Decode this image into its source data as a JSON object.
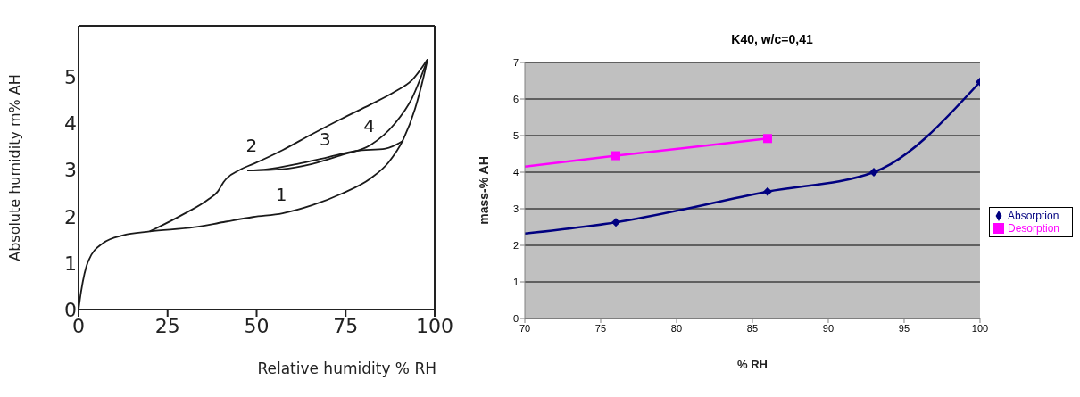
{
  "chart_data": [
    {
      "type": "line",
      "xlabel": "Relative humidity % RH",
      "ylabel": "Absolute humidity m% AH",
      "xlim": [
        0,
        100
      ],
      "ylim": [
        0,
        6.1
      ],
      "xticks": [
        0,
        25,
        50,
        75,
        100
      ],
      "yticks": [
        0,
        1,
        2,
        3,
        4,
        5
      ],
      "grid": false,
      "marker": "none",
      "series": [
        {
          "name": "1",
          "color": "#1a1a1a",
          "x": [
            0,
            0.7,
            2.7,
            6.9,
            12.6,
            20,
            32.5,
            40.7,
            49,
            57.3,
            65.5,
            73.8,
            82,
            87,
            91.2,
            94.5,
            97,
            98
          ],
          "values": [
            0,
            0.38,
            1.04,
            1.43,
            1.6,
            1.68,
            1.77,
            1.88,
            1.99,
            2.07,
            2.24,
            2.49,
            2.82,
            3.16,
            3.66,
            4.32,
            5.04,
            5.38
          ]
        },
        {
          "name": "2",
          "color": "#1a1a1a",
          "x": [
            98,
            93.6,
            88.7,
            82,
            73.8,
            65.5,
            57.3,
            49,
            45.7,
            40.7,
            39.1,
            36.6,
            29.2,
            20
          ],
          "values": [
            5.38,
            4.93,
            4.68,
            4.41,
            4.1,
            3.77,
            3.43,
            3.13,
            3.02,
            2.74,
            2.54,
            2.38,
            2.04,
            1.68
          ]
        },
        {
          "name": "3",
          "color": "#1a1a1a",
          "x": [
            91.2,
            86.2,
            77.9,
            69.7,
            61.4,
            53.1,
            47.4
          ],
          "values": [
            3.63,
            3.46,
            3.41,
            3.27,
            3.13,
            3.02,
            2.99
          ]
        },
        {
          "name": "4",
          "color": "#1a1a1a",
          "x": [
            47.4,
            57.3,
            65.5,
            73.8,
            82,
            88.7,
            93.6,
            98
          ],
          "values": [
            2.99,
            3.02,
            3.13,
            3.32,
            3.54,
            3.99,
            4.54,
            5.38
          ]
        }
      ]
    },
    {
      "type": "line",
      "title": "K40, w/c=0,41",
      "xlabel": "% RH",
      "ylabel": "mass-% AH",
      "xlim": [
        70,
        100
      ],
      "ylim": [
        0,
        7
      ],
      "xticks": [
        70,
        75,
        80,
        85,
        90,
        95,
        100
      ],
      "yticks": [
        0,
        1,
        2,
        3,
        4,
        5,
        6,
        7
      ],
      "grid": "y",
      "legend": "right",
      "series": [
        {
          "name": "Absorption",
          "color": "#000080",
          "marker": "diamond",
          "x": [
            70,
            76,
            86,
            93,
            100
          ],
          "values": [
            2.32,
            2.63,
            3.47,
            4.0,
            6.47
          ]
        },
        {
          "name": "Desorption",
          "color": "#ff00ff",
          "marker": "square",
          "x": [
            70,
            76,
            86
          ],
          "values": [
            4.15,
            4.45,
            4.92
          ]
        }
      ]
    }
  ]
}
